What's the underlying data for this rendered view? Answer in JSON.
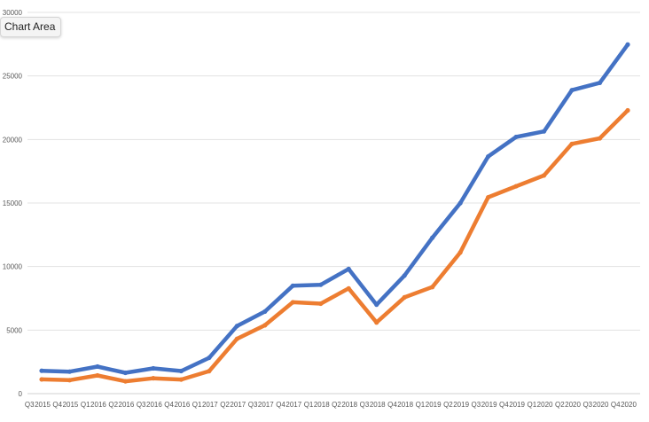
{
  "ui": {
    "chart_area_label": "Chart Area"
  },
  "chart_data": {
    "type": "line",
    "title": "",
    "xlabel": "",
    "ylabel": "",
    "ylim": [
      0,
      30000
    ],
    "yticks": [
      0,
      5000,
      10000,
      15000,
      20000,
      25000,
      30000
    ],
    "grid": true,
    "legend": "none",
    "categories": [
      "Q3 2015",
      "Q4 2015",
      "Q1 2016",
      "Q2 2016",
      "Q3 2016",
      "Q4 2016",
      "Q1 2017",
      "Q2 2017",
      "Q3 2017",
      "Q4 2017",
      "Q1 2018",
      "Q2 2018",
      "Q3 2018",
      "Q4 2018",
      "Q1 2019",
      "Q2 2019",
      "Q3 2019",
      "Q4 2019",
      "Q1 2020",
      "Q2 2020",
      "Q3 2020",
      "Q4 2020"
    ],
    "series": [
      {
        "color": "#4472C4",
        "values": [
          1800,
          1730,
          2130,
          1640,
          1990,
          1780,
          2820,
          5320,
          6460,
          8490,
          8570,
          9810,
          7000,
          9290,
          12270,
          14990,
          18660,
          20200,
          20640,
          23880,
          24460,
          27470
        ]
      },
      {
        "color": "#ED7D31",
        "values": [
          1120,
          1060,
          1430,
          970,
          1210,
          1110,
          1770,
          4310,
          5380,
          7190,
          7080,
          8280,
          5600,
          7580,
          8390,
          11110,
          15450,
          16320,
          17170,
          19650,
          20090,
          22290
        ]
      }
    ]
  }
}
